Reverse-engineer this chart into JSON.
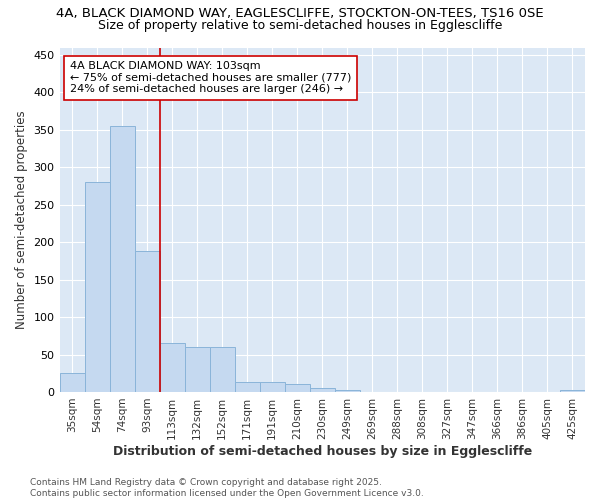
{
  "title1": "4A, BLACK DIAMOND WAY, EAGLESCLIFFE, STOCKTON-ON-TEES, TS16 0SE",
  "title2": "Size of property relative to semi-detached houses in Egglescliffe",
  "xlabel": "Distribution of semi-detached houses by size in Egglescliffe",
  "ylabel": "Number of semi-detached properties",
  "categories": [
    "35sqm",
    "54sqm",
    "74sqm",
    "93sqm",
    "113sqm",
    "132sqm",
    "152sqm",
    "171sqm",
    "191sqm",
    "210sqm",
    "230sqm",
    "249sqm",
    "269sqm",
    "288sqm",
    "308sqm",
    "327sqm",
    "347sqm",
    "366sqm",
    "386sqm",
    "405sqm",
    "425sqm"
  ],
  "values": [
    25,
    280,
    355,
    188,
    65,
    60,
    60,
    13,
    13,
    10,
    5,
    2,
    0,
    0,
    0,
    0,
    0,
    0,
    0,
    0,
    2
  ],
  "bar_color": "#c5d9f0",
  "bar_edge_color": "#8ab4d9",
  "vline_x_index": 3.5,
  "vline_color": "#cc0000",
  "annotation_text": "4A BLACK DIAMOND WAY: 103sqm\n← 75% of semi-detached houses are smaller (777)\n24% of semi-detached houses are larger (246) →",
  "annotation_box_color": "white",
  "annotation_box_edge": "#cc0000",
  "ylim": [
    0,
    460
  ],
  "yticks": [
    0,
    50,
    100,
    150,
    200,
    250,
    300,
    350,
    400,
    450
  ],
  "background_color": "#dce8f5",
  "footer_text": "Contains HM Land Registry data © Crown copyright and database right 2025.\nContains public sector information licensed under the Open Government Licence v3.0.",
  "title1_fontsize": 9.5,
  "title2_fontsize": 9,
  "xlabel_fontsize": 9,
  "ylabel_fontsize": 8.5,
  "annotation_fontsize": 8,
  "footer_fontsize": 6.5
}
